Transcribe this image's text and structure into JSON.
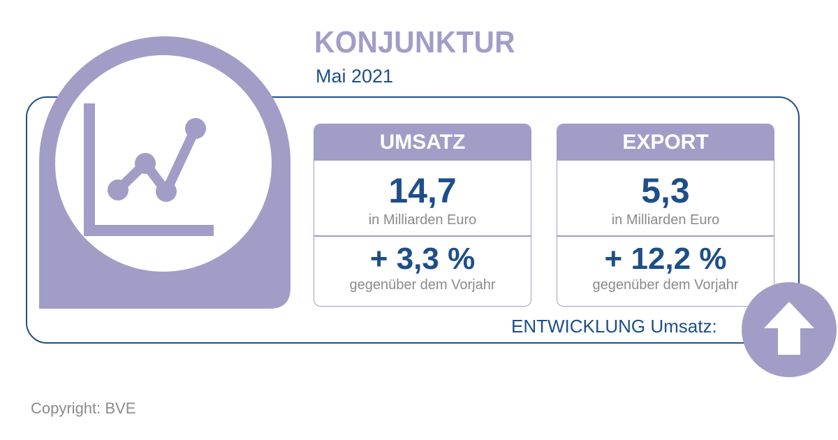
{
  "header": {
    "title": "KONJUNKTUR",
    "subtitle": "Mai 2021"
  },
  "badge": {
    "icon": "line-chart-icon"
  },
  "cards": [
    {
      "title": "UMSATZ",
      "value": "14,7",
      "unit": "in Milliarden Euro",
      "change": "+ 3,3 %",
      "change_note": "gegenüber dem Vorjahr"
    },
    {
      "title": "EXPORT",
      "value": "5,3",
      "unit": "in Milliarden Euro",
      "change": "+ 12,2 %",
      "change_note": "gegenüber dem Vorjahr"
    }
  ],
  "trend": {
    "label": "ENTWICKLUNG Umsatz:",
    "direction": "up",
    "icon": "arrow-up-icon"
  },
  "footer": {
    "copyright": "Copyright: BVE"
  },
  "colors": {
    "accent": "#a29dc7",
    "primary": "#1d4e89",
    "muted": "#8a8a8a"
  }
}
